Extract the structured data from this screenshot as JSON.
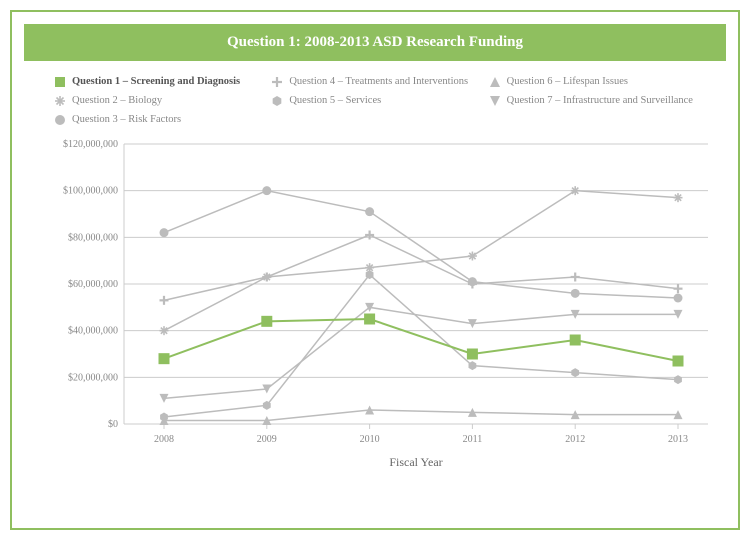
{
  "title": "Question 1: 2008-2013 ASD Research Funding",
  "x_axis_label": "Fiscal Year",
  "chart": {
    "type": "line",
    "categories": [
      "2008",
      "2009",
      "2010",
      "2011",
      "2012",
      "2013"
    ],
    "ylim": [
      0,
      120000000
    ],
    "ytick_step": 20000000,
    "ytick_labels": [
      "$0",
      "$20,000,000",
      "$40,000,000",
      "$60,000,000",
      "$80,000,000",
      "$100,000,000",
      "$120,000,000"
    ],
    "background_color": "#ffffff",
    "grid_color": "#cccccc",
    "axis_color": "#cccccc",
    "tick_font_size": 10,
    "highlighted_series_index": 0,
    "series": [
      {
        "name": "Question 1 – Screening and Diagnosis",
        "marker": "square",
        "color": "#8fbf5f",
        "line_color": "#8fbf5f",
        "line_width": 2,
        "values": [
          28000000,
          44000000,
          45000000,
          30000000,
          36000000,
          27000000
        ]
      },
      {
        "name": "Question 2 – Biology",
        "marker": "asterisk",
        "color": "#bcbcbc",
        "line_color": "#bcbcbc",
        "line_width": 1.5,
        "values": [
          40000000,
          63000000,
          67000000,
          72000000,
          100000000,
          97000000
        ]
      },
      {
        "name": "Question 3 – Risk Factors",
        "marker": "circle",
        "color": "#bcbcbc",
        "line_color": "#bcbcbc",
        "line_width": 1.5,
        "values": [
          82000000,
          100000000,
          91000000,
          61000000,
          56000000,
          54000000
        ]
      },
      {
        "name": "Question 4 – Treatments and Interventions",
        "marker": "plus",
        "color": "#bcbcbc",
        "line_color": "#bcbcbc",
        "line_width": 1.5,
        "values": [
          53000000,
          63000000,
          81000000,
          60000000,
          63000000,
          58000000
        ]
      },
      {
        "name": "Question 5 – Services",
        "marker": "hexagon",
        "color": "#bcbcbc",
        "line_color": "#bcbcbc",
        "line_width": 1.5,
        "values": [
          3000000,
          8000000,
          64000000,
          25000000,
          22000000,
          19000000
        ]
      },
      {
        "name": "Question 6 – Lifespan Issues",
        "marker": "triangle",
        "color": "#bcbcbc",
        "line_color": "#bcbcbc",
        "line_width": 1.5,
        "values": [
          1500000,
          1500000,
          6000000,
          5000000,
          4000000,
          4000000
        ]
      },
      {
        "name": "Question 7 – Infrastructure and Surveillance",
        "marker": "triangle-down",
        "color": "#bcbcbc",
        "line_color": "#bcbcbc",
        "line_width": 1.5,
        "values": [
          11000000,
          15000000,
          50000000,
          43000000,
          47000000,
          47000000
        ]
      }
    ]
  }
}
